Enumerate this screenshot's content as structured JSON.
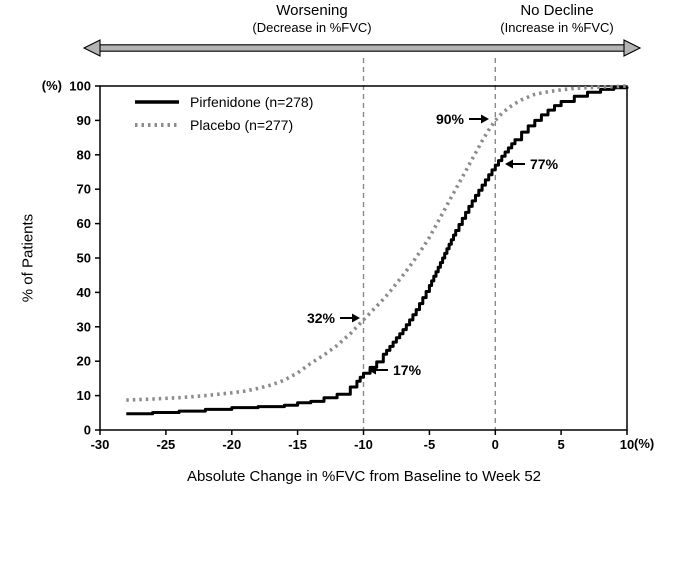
{
  "header": {
    "left_region_title": "Worsening",
    "left_region_subtitle": "(Decrease in %FVC)",
    "right_region_title": "No Decline",
    "right_region_subtitle": "(Increase in %FVC)"
  },
  "axes": {
    "y_unit": "(%)",
    "y_title": "% of Patients",
    "x_unit": "(%)",
    "x_title": "Absolute Change in %FVC from Baseline to Week 52"
  },
  "legend": {
    "items": [
      {
        "label": "Pirfenidone (n=278)",
        "color": "#000000",
        "style": "solid"
      },
      {
        "label": "Placebo (n=277)",
        "color": "#8c8c8c",
        "style": "dotted"
      }
    ]
  },
  "chart_data": {
    "type": "line",
    "title": "",
    "xlabel": "Absolute Change in %FVC from Baseline to Week 52",
    "ylabel": "% of Patients",
    "xlim": [
      -30,
      10
    ],
    "ylim": [
      0,
      100
    ],
    "x_ticks": [
      -30,
      -25,
      -20,
      -15,
      -10,
      -5,
      0,
      5,
      10
    ],
    "y_ticks": [
      0,
      10,
      20,
      30,
      40,
      50,
      60,
      70,
      80,
      90,
      100
    ],
    "grid": false,
    "legend_position": "top-left-inside",
    "reference_lines_x": [
      -10,
      0
    ],
    "series": [
      {
        "name": "Pirfenidone (n=278)",
        "color": "#000000",
        "style": "solid",
        "points": [
          [
            -28,
            4.7
          ],
          [
            -26,
            5.1
          ],
          [
            -24,
            5.5
          ],
          [
            -22,
            6
          ],
          [
            -20,
            6.5
          ],
          [
            -18,
            6.8
          ],
          [
            -16,
            7.2
          ],
          [
            -15,
            7.9
          ],
          [
            -14,
            8.3
          ],
          [
            -13,
            9.4
          ],
          [
            -12,
            10.4
          ],
          [
            -11,
            12.5
          ],
          [
            -10.5,
            14.2
          ],
          [
            -10,
            16.5
          ],
          [
            -9.5,
            18.2
          ],
          [
            -9,
            19.8
          ],
          [
            -8.5,
            22
          ],
          [
            -8,
            24.3
          ],
          [
            -7.5,
            26.8
          ],
          [
            -7,
            29.2
          ],
          [
            -6.5,
            32
          ],
          [
            -6,
            35
          ],
          [
            -5.5,
            38.5
          ],
          [
            -5,
            42
          ],
          [
            -4.5,
            46
          ],
          [
            -4,
            50
          ],
          [
            -3.5,
            54
          ],
          [
            -3,
            58
          ],
          [
            -2.5,
            61.5
          ],
          [
            -2,
            65
          ],
          [
            -1.5,
            68.2
          ],
          [
            -1,
            71.2
          ],
          [
            -0.5,
            74.2
          ],
          [
            0,
            77
          ],
          [
            0.5,
            79.6
          ],
          [
            1,
            82
          ],
          [
            1.5,
            84.4
          ],
          [
            2,
            86.6
          ],
          [
            2.5,
            88.4
          ],
          [
            3,
            90
          ],
          [
            3.5,
            91.6
          ],
          [
            4,
            93
          ],
          [
            4.5,
            94.3
          ],
          [
            5,
            95.5
          ],
          [
            6,
            97
          ],
          [
            7,
            98.2
          ],
          [
            8,
            99
          ],
          [
            9,
            99.5
          ],
          [
            10,
            99.8
          ]
        ]
      },
      {
        "name": "Placebo (n=277)",
        "color": "#8c8c8c",
        "style": "dotted",
        "points": [
          [
            -28,
            8.7
          ],
          [
            -26,
            9
          ],
          [
            -24,
            9.4
          ],
          [
            -22,
            10
          ],
          [
            -20,
            10.8
          ],
          [
            -19,
            11.3
          ],
          [
            -18,
            12.1
          ],
          [
            -17,
            13.1
          ],
          [
            -16,
            14.5
          ],
          [
            -15,
            16.6
          ],
          [
            -14,
            19.4
          ],
          [
            -13,
            21.8
          ],
          [
            -12,
            24.6
          ],
          [
            -11,
            28
          ],
          [
            -10.5,
            30
          ],
          [
            -10,
            32
          ],
          [
            -9.5,
            34
          ],
          [
            -9,
            36
          ],
          [
            -8.5,
            38
          ],
          [
            -8,
            40.2
          ],
          [
            -7.5,
            42.6
          ],
          [
            -7,
            45
          ],
          [
            -6.5,
            47.5
          ],
          [
            -6,
            50.2
          ],
          [
            -5.5,
            53
          ],
          [
            -5,
            56
          ],
          [
            -4.5,
            59.5
          ],
          [
            -4,
            63
          ],
          [
            -3.5,
            66.5
          ],
          [
            -3,
            70
          ],
          [
            -2.5,
            73.5
          ],
          [
            -2,
            77
          ],
          [
            -1.5,
            80.5
          ],
          [
            -1,
            84
          ],
          [
            -0.5,
            87.2
          ],
          [
            0,
            90
          ],
          [
            0.5,
            92
          ],
          [
            1,
            93.6
          ],
          [
            1.5,
            94.9
          ],
          [
            2,
            96
          ],
          [
            3,
            97.6
          ],
          [
            4,
            98.3
          ],
          [
            5,
            98.9
          ],
          [
            6,
            99.3
          ],
          [
            7,
            99.5
          ],
          [
            8,
            99.7
          ],
          [
            9,
            99.8
          ],
          [
            10,
            100
          ]
        ]
      }
    ],
    "annotations": [
      {
        "label": "90%",
        "x": 0,
        "y": 90,
        "series": "Placebo (n=277)",
        "arrow": "right"
      },
      {
        "label": "77%",
        "x": 0,
        "y": 77,
        "series": "Pirfenidone (n=278)",
        "arrow": "left"
      },
      {
        "label": "32%",
        "x": -10,
        "y": 32,
        "series": "Placebo (n=277)",
        "arrow": "right"
      },
      {
        "label": "17%",
        "x": -10,
        "y": 17,
        "series": "Pirfenidone (n=278)",
        "arrow": "left"
      }
    ]
  }
}
